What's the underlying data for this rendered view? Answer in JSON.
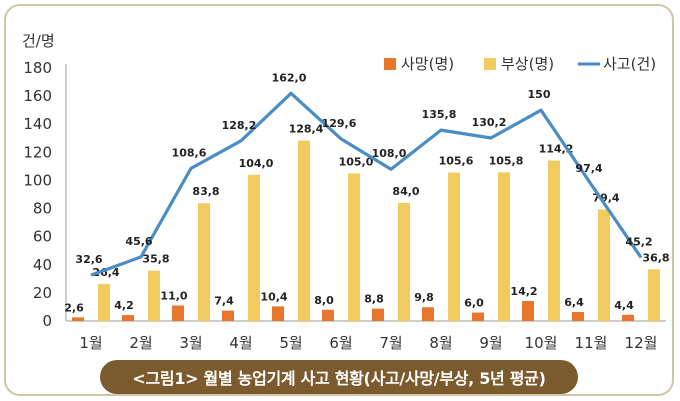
{
  "caption": "<그림1> 월별 농업기계 사고 현황(사고/사망/부상, 5년 평균)",
  "chart_data": {
    "type": "bar",
    "title": "",
    "ylabel": "건/명",
    "ylim": [
      0,
      180
    ],
    "yticks": [
      0,
      20,
      40,
      60,
      80,
      100,
      120,
      140,
      160,
      180
    ],
    "categories": [
      "1월",
      "2월",
      "3월",
      "4월",
      "5월",
      "6월",
      "7월",
      "8월",
      "9월",
      "10월",
      "11월",
      "12월"
    ],
    "legend_position": "top-right",
    "series": [
      {
        "name": "사망(명)",
        "type": "bar",
        "color": "#e8762d",
        "values": [
          2.6,
          4.2,
          11.0,
          7.4,
          10.4,
          8.0,
          8.8,
          9.8,
          6.0,
          14.2,
          6.4,
          4.4
        ],
        "labels": [
          "2,6",
          "4,2",
          "11,0",
          "7,4",
          "10,4",
          "8,0",
          "8,8",
          "9,8",
          "6,0",
          "14,2",
          "6,4",
          "4,4"
        ]
      },
      {
        "name": "부상(명)",
        "type": "bar",
        "color": "#f0cc60",
        "values": [
          26.4,
          35.8,
          83.8,
          104.0,
          128.4,
          105.0,
          84.0,
          105.6,
          105.8,
          114.2,
          79.4,
          36.8
        ],
        "labels": [
          "26,4",
          "35,8",
          "83,8",
          "104,0",
          "128,4",
          "105,0",
          "84,0",
          "105,6",
          "105,8",
          "114,2",
          "79,4",
          "36,8"
        ]
      },
      {
        "name": "사고(건)",
        "type": "line",
        "color": "#4a8cc4",
        "values": [
          32.6,
          45.6,
          108.6,
          128.2,
          162.0,
          129.6,
          108.0,
          135.8,
          130.2,
          150,
          97.4,
          45.2
        ],
        "labels": [
          "32,6",
          "45,6",
          "108,6",
          "128,2",
          "162,0",
          "129,6",
          "108,0",
          "135,8",
          "130,2",
          "150",
          "97,4",
          "45,2"
        ]
      }
    ]
  }
}
